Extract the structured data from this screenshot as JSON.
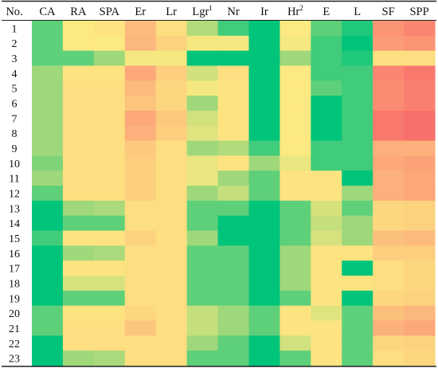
{
  "chart_data": {
    "type": "heatmap",
    "corner_label": "No.",
    "columns": [
      {
        "label": "CA",
        "sup": ""
      },
      {
        "label": "RA",
        "sup": ""
      },
      {
        "label": "SPA",
        "sup": ""
      },
      {
        "label": "Er",
        "sup": ""
      },
      {
        "label": "Lr",
        "sup": ""
      },
      {
        "label": "Lgr",
        "sup": "1"
      },
      {
        "label": "Nr",
        "sup": ""
      },
      {
        "label": "Ir",
        "sup": ""
      },
      {
        "label": "Hr",
        "sup": "2"
      },
      {
        "label": "E",
        "sup": ""
      },
      {
        "label": "L",
        "sup": ""
      },
      {
        "label": "SF",
        "sup": ""
      },
      {
        "label": "SPP",
        "sup": ""
      }
    ],
    "rows": [
      "1",
      "2",
      "3",
      "4",
      "5",
      "6",
      "7",
      "8",
      "9",
      "10",
      "11",
      "12",
      "13",
      "14",
      "15",
      "16",
      "17",
      "18",
      "19",
      "20",
      "21",
      "22",
      "23"
    ],
    "color_scale": {
      "stops": [
        {
          "value": 0.0,
          "color": "#00c47a"
        },
        {
          "value": 0.25,
          "color": "#9fd87a"
        },
        {
          "value": 0.5,
          "color": "#fde981"
        },
        {
          "value": 0.75,
          "color": "#fcb07b"
        },
        {
          "value": 1.0,
          "color": "#f86a6b"
        }
      ],
      "note": "green = low, yellow = mid, red = high"
    },
    "values": [
      [
        0.15,
        0.5,
        0.52,
        0.7,
        0.55,
        0.3,
        0.1,
        0.0,
        0.5,
        0.15,
        0.05,
        0.85,
        0.9
      ],
      [
        0.15,
        0.5,
        0.5,
        0.72,
        0.6,
        0.48,
        0.48,
        0.0,
        0.48,
        0.1,
        0.0,
        0.82,
        0.85
      ],
      [
        0.15,
        0.15,
        0.25,
        0.48,
        0.48,
        0.0,
        0.0,
        0.0,
        0.25,
        0.1,
        0.05,
        0.55,
        0.55
      ],
      [
        0.25,
        0.52,
        0.52,
        0.78,
        0.62,
        0.38,
        0.55,
        0.0,
        0.5,
        0.1,
        0.1,
        0.9,
        0.95
      ],
      [
        0.25,
        0.55,
        0.55,
        0.7,
        0.58,
        0.48,
        0.52,
        0.0,
        0.5,
        0.15,
        0.1,
        0.88,
        0.92
      ],
      [
        0.25,
        0.55,
        0.55,
        0.66,
        0.58,
        0.25,
        0.52,
        0.0,
        0.5,
        0.0,
        0.1,
        0.88,
        0.92
      ],
      [
        0.25,
        0.55,
        0.55,
        0.78,
        0.64,
        0.38,
        0.52,
        0.0,
        0.5,
        0.0,
        0.1,
        0.95,
        0.98
      ],
      [
        0.25,
        0.55,
        0.55,
        0.75,
        0.62,
        0.42,
        0.52,
        0.0,
        0.5,
        0.0,
        0.1,
        0.95,
        0.98
      ],
      [
        0.25,
        0.55,
        0.55,
        0.64,
        0.55,
        0.25,
        0.3,
        0.1,
        0.5,
        0.1,
        0.1,
        0.75,
        0.75
      ],
      [
        0.2,
        0.55,
        0.55,
        0.62,
        0.55,
        0.45,
        0.52,
        0.25,
        0.45,
        0.1,
        0.1,
        0.78,
        0.8
      ],
      [
        0.25,
        0.55,
        0.55,
        0.62,
        0.55,
        0.45,
        0.25,
        0.15,
        0.52,
        0.52,
        0.0,
        0.75,
        0.78
      ],
      [
        0.15,
        0.55,
        0.55,
        0.62,
        0.55,
        0.25,
        0.35,
        0.15,
        0.52,
        0.52,
        0.25,
        0.75,
        0.78
      ],
      [
        0.0,
        0.25,
        0.28,
        0.55,
        0.55,
        0.15,
        0.15,
        0.0,
        0.15,
        0.4,
        0.15,
        0.58,
        0.6
      ],
      [
        0.0,
        0.15,
        0.15,
        0.55,
        0.55,
        0.15,
        0.0,
        0.0,
        0.15,
        0.35,
        0.25,
        0.58,
        0.6
      ],
      [
        0.1,
        0.52,
        0.52,
        0.6,
        0.55,
        0.25,
        0.0,
        0.0,
        0.15,
        0.4,
        0.25,
        0.68,
        0.7
      ],
      [
        0.0,
        0.25,
        0.28,
        0.55,
        0.55,
        0.15,
        0.15,
        0.0,
        0.25,
        0.52,
        0.52,
        0.62,
        0.62
      ],
      [
        0.0,
        0.52,
        0.52,
        0.55,
        0.55,
        0.15,
        0.15,
        0.0,
        0.25,
        0.52,
        0.0,
        0.55,
        0.58
      ],
      [
        0.0,
        0.4,
        0.4,
        0.55,
        0.55,
        0.15,
        0.15,
        0.0,
        0.25,
        0.52,
        0.52,
        0.55,
        0.58
      ],
      [
        0.0,
        0.15,
        0.15,
        0.55,
        0.55,
        0.15,
        0.15,
        0.0,
        0.15,
        0.52,
        0.0,
        0.58,
        0.6
      ],
      [
        0.15,
        0.52,
        0.52,
        0.58,
        0.55,
        0.35,
        0.25,
        0.15,
        0.52,
        0.42,
        0.15,
        0.68,
        0.72
      ],
      [
        0.15,
        0.55,
        0.55,
        0.66,
        0.55,
        0.35,
        0.25,
        0.15,
        0.52,
        0.52,
        0.15,
        0.75,
        0.78
      ],
      [
        0.0,
        0.55,
        0.55,
        0.55,
        0.55,
        0.25,
        0.15,
        0.0,
        0.38,
        0.52,
        0.15,
        0.58,
        0.6
      ],
      [
        0.0,
        0.25,
        0.28,
        0.55,
        0.55,
        0.15,
        0.15,
        0.0,
        0.15,
        0.52,
        0.15,
        0.55,
        0.58
      ]
    ]
  }
}
